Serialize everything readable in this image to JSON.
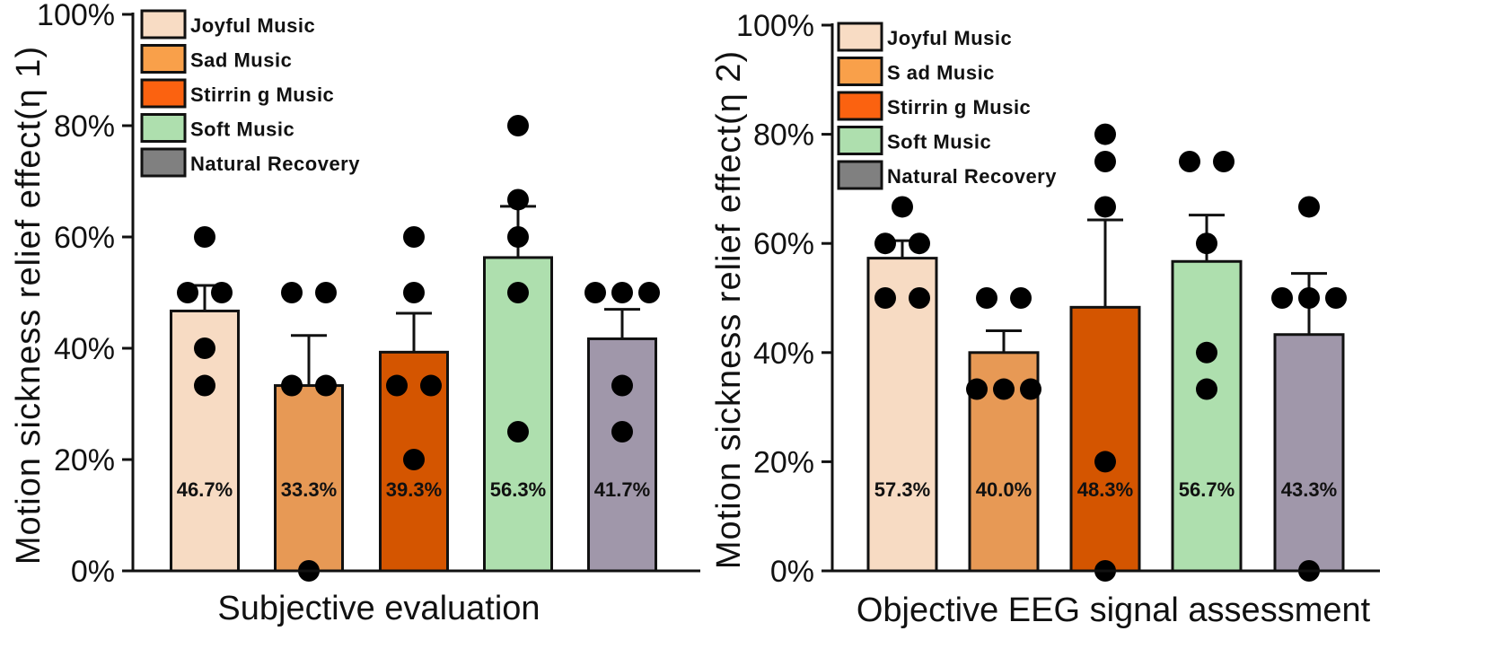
{
  "chart_data": [
    {
      "type": "bar",
      "title": "",
      "xlabel": "Subjective evaluation",
      "ylabel": "Motion sickness relief effect(η 1)",
      "ylim": [
        0,
        100
      ],
      "yticks": [
        "0%",
        "20%",
        "40%",
        "60%",
        "80%",
        "100%"
      ],
      "ytick_values": [
        0,
        20,
        40,
        60,
        80,
        100
      ],
      "legend_position": "top-left",
      "categories": [
        "Joyful Music",
        "Sad Music",
        "Stirring Music",
        "Soft Music",
        "Natural Recovery"
      ],
      "values": [
        46.7,
        33.3,
        39.3,
        56.3,
        41.7
      ],
      "value_labels": [
        "46.7%",
        "33.3%",
        "39.3%",
        "56.3%",
        "41.7%"
      ],
      "error_upper": [
        51.3,
        42.3,
        46.3,
        65.5,
        47.0
      ],
      "points": [
        [
          60,
          50,
          50,
          40,
          33.3
        ],
        [
          50,
          50,
          33.3,
          33.3,
          0
        ],
        [
          60,
          50,
          33.3,
          33.3,
          20
        ],
        [
          80,
          66.7,
          60,
          50,
          25
        ],
        [
          50,
          50,
          50,
          33.3,
          25
        ]
      ]
    },
    {
      "type": "bar",
      "title": "",
      "xlabel": "Objective EEG signal assessment",
      "ylabel": "Motion sickness relief effect(η 2)",
      "ylim": [
        0,
        100
      ],
      "yticks": [
        "0%",
        "20%",
        "40%",
        "60%",
        "80%",
        "100%"
      ],
      "ytick_values": [
        0,
        20,
        40,
        60,
        80,
        100
      ],
      "legend_position": "top-left",
      "categories": [
        "Joyful Music",
        "Sad Music",
        "Stirring Music",
        "Soft Music",
        "Natural Recovery"
      ],
      "values": [
        57.3,
        40.0,
        48.3,
        56.7,
        43.3
      ],
      "value_labels": [
        "57.3%",
        "40.0%",
        "48.3%",
        "56.7%",
        "43.3%"
      ],
      "error_upper": [
        60.5,
        44.0,
        64.3,
        65.2,
        54.5
      ],
      "points": [
        [
          66.7,
          60,
          60,
          50,
          50
        ],
        [
          50,
          50,
          33.3,
          33.3,
          33.3
        ],
        [
          80,
          75,
          66.7,
          20,
          0
        ],
        [
          75,
          75,
          60,
          40,
          33.3
        ],
        [
          66.7,
          50,
          50,
          50,
          0
        ]
      ]
    }
  ],
  "legend": {
    "items": [
      {
        "label": "Joyful Music",
        "color": "#f8dcc4"
      },
      {
        "label": "Sad Music",
        "color": "#f9a04a"
      },
      {
        "label": "Stirring Music",
        "color": "#fb6210"
      },
      {
        "label": "Soft Music",
        "color": "#aedfae"
      },
      {
        "label": "Natural Recovery",
        "color": "#808080"
      }
    ],
    "right_labels": [
      "Joyful Music",
      "S ad  Music",
      "Stirrin g  Music",
      "Soft  Music",
      "Natural  Recovery"
    ],
    "left_labels": [
      "Joyful Music",
      "Sad  Music",
      "Stirrin g  Music",
      "Soft  Music",
      "Natural  Recovery"
    ]
  },
  "bar_colors": [
    "#f7dbc3",
    "#e79955",
    "#d45500",
    "#aedfae",
    "#a097aa"
  ],
  "point_color": "#000000"
}
